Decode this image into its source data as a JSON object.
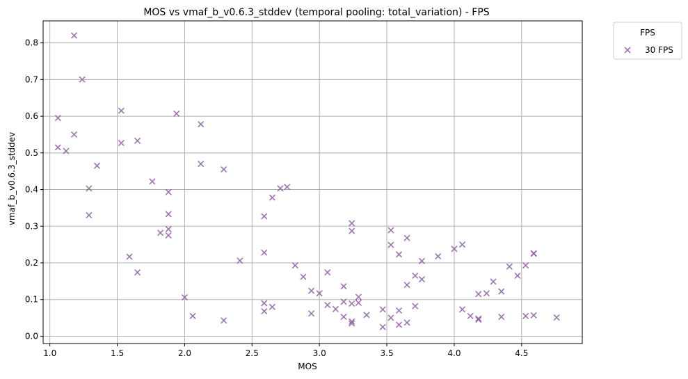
{
  "chart_data": {
    "type": "scatter",
    "title": "MOS vs vmaf_b_v0.6.3_stddev (temporal pooling: total_variation) - FPS",
    "xlabel": "MOS",
    "ylabel": "vmaf_b_v0.6.3_stddev",
    "xlim": [
      0.95,
      4.95
    ],
    "ylim": [
      -0.02,
      0.86
    ],
    "xticks": [
      1.0,
      1.5,
      2.0,
      2.5,
      3.0,
      3.5,
      4.0,
      4.5
    ],
    "xtick_labels": [
      "1.0",
      "1.5",
      "2.0",
      "2.5",
      "3.0",
      "3.5",
      "4.0",
      "4.5"
    ],
    "yticks": [
      0.0,
      0.1,
      0.2,
      0.3,
      0.4,
      0.5,
      0.6,
      0.7,
      0.8
    ],
    "ytick_labels": [
      "0.0",
      "0.1",
      "0.2",
      "0.3",
      "0.4",
      "0.5",
      "0.6",
      "0.7",
      "0.8"
    ],
    "grid": true,
    "legend": {
      "title": "FPS",
      "placement": "outside-top-right"
    },
    "marker": "x",
    "series": [
      {
        "name": "30 FPS",
        "color": "#8b5c9e",
        "points": [
          [
            1.18,
            0.82
          ],
          [
            1.24,
            0.7
          ],
          [
            1.06,
            0.595
          ],
          [
            1.06,
            0.515
          ],
          [
            1.12,
            0.505
          ],
          [
            1.18,
            0.55
          ],
          [
            1.35,
            0.465
          ],
          [
            1.29,
            0.403
          ],
          [
            1.29,
            0.33
          ],
          [
            1.53,
            0.615
          ],
          [
            1.53,
            0.527
          ],
          [
            1.65,
            0.533
          ],
          [
            1.94,
            0.607
          ],
          [
            2.12,
            0.578
          ],
          [
            2.12,
            0.47
          ],
          [
            2.29,
            0.455
          ],
          [
            1.76,
            0.422
          ],
          [
            1.88,
            0.393
          ],
          [
            1.88,
            0.333
          ],
          [
            1.88,
            0.292
          ],
          [
            1.82,
            0.282
          ],
          [
            1.88,
            0.275
          ],
          [
            1.59,
            0.217
          ],
          [
            1.65,
            0.174
          ],
          [
            2.0,
            0.106
          ],
          [
            2.06,
            0.055
          ],
          [
            2.29,
            0.043
          ],
          [
            2.41,
            0.206
          ],
          [
            2.59,
            0.327
          ],
          [
            2.59,
            0.228
          ],
          [
            2.59,
            0.09
          ],
          [
            2.59,
            0.068
          ],
          [
            2.65,
            0.08
          ],
          [
            2.65,
            0.378
          ],
          [
            2.71,
            0.403
          ],
          [
            2.76,
            0.407
          ],
          [
            2.82,
            0.193
          ],
          [
            2.88,
            0.162
          ],
          [
            2.94,
            0.124
          ],
          [
            2.94,
            0.062
          ],
          [
            3.0,
            0.117
          ],
          [
            3.06,
            0.174
          ],
          [
            3.06,
            0.085
          ],
          [
            3.12,
            0.074
          ],
          [
            3.18,
            0.136
          ],
          [
            3.18,
            0.094
          ],
          [
            3.18,
            0.053
          ],
          [
            3.24,
            0.308
          ],
          [
            3.24,
            0.287
          ],
          [
            3.24,
            0.089
          ],
          [
            3.24,
            0.04
          ],
          [
            3.24,
            0.035
          ],
          [
            3.29,
            0.107
          ],
          [
            3.29,
            0.091
          ],
          [
            3.35,
            0.058
          ],
          [
            3.47,
            0.073
          ],
          [
            3.47,
            0.025
          ],
          [
            3.53,
            0.289
          ],
          [
            3.53,
            0.249
          ],
          [
            3.53,
            0.05
          ],
          [
            3.59,
            0.223
          ],
          [
            3.59,
            0.07
          ],
          [
            3.59,
            0.031
          ],
          [
            3.65,
            0.268
          ],
          [
            3.65,
            0.14
          ],
          [
            3.65,
            0.037
          ],
          [
            3.71,
            0.165
          ],
          [
            3.71,
            0.082
          ],
          [
            3.76,
            0.205
          ],
          [
            3.76,
            0.155
          ],
          [
            3.88,
            0.218
          ],
          [
            4.0,
            0.238
          ],
          [
            4.06,
            0.25
          ],
          [
            4.06,
            0.073
          ],
          [
            4.12,
            0.055
          ],
          [
            4.18,
            0.115
          ],
          [
            4.18,
            0.048
          ],
          [
            4.18,
            0.045
          ],
          [
            4.24,
            0.117
          ],
          [
            4.29,
            0.149
          ],
          [
            4.35,
            0.122
          ],
          [
            4.35,
            0.053
          ],
          [
            4.41,
            0.19
          ],
          [
            4.47,
            0.165
          ],
          [
            4.53,
            0.193
          ],
          [
            4.53,
            0.055
          ],
          [
            4.59,
            0.226
          ],
          [
            4.59,
            0.225
          ],
          [
            4.59,
            0.057
          ],
          [
            4.76,
            0.051
          ]
        ]
      }
    ]
  }
}
